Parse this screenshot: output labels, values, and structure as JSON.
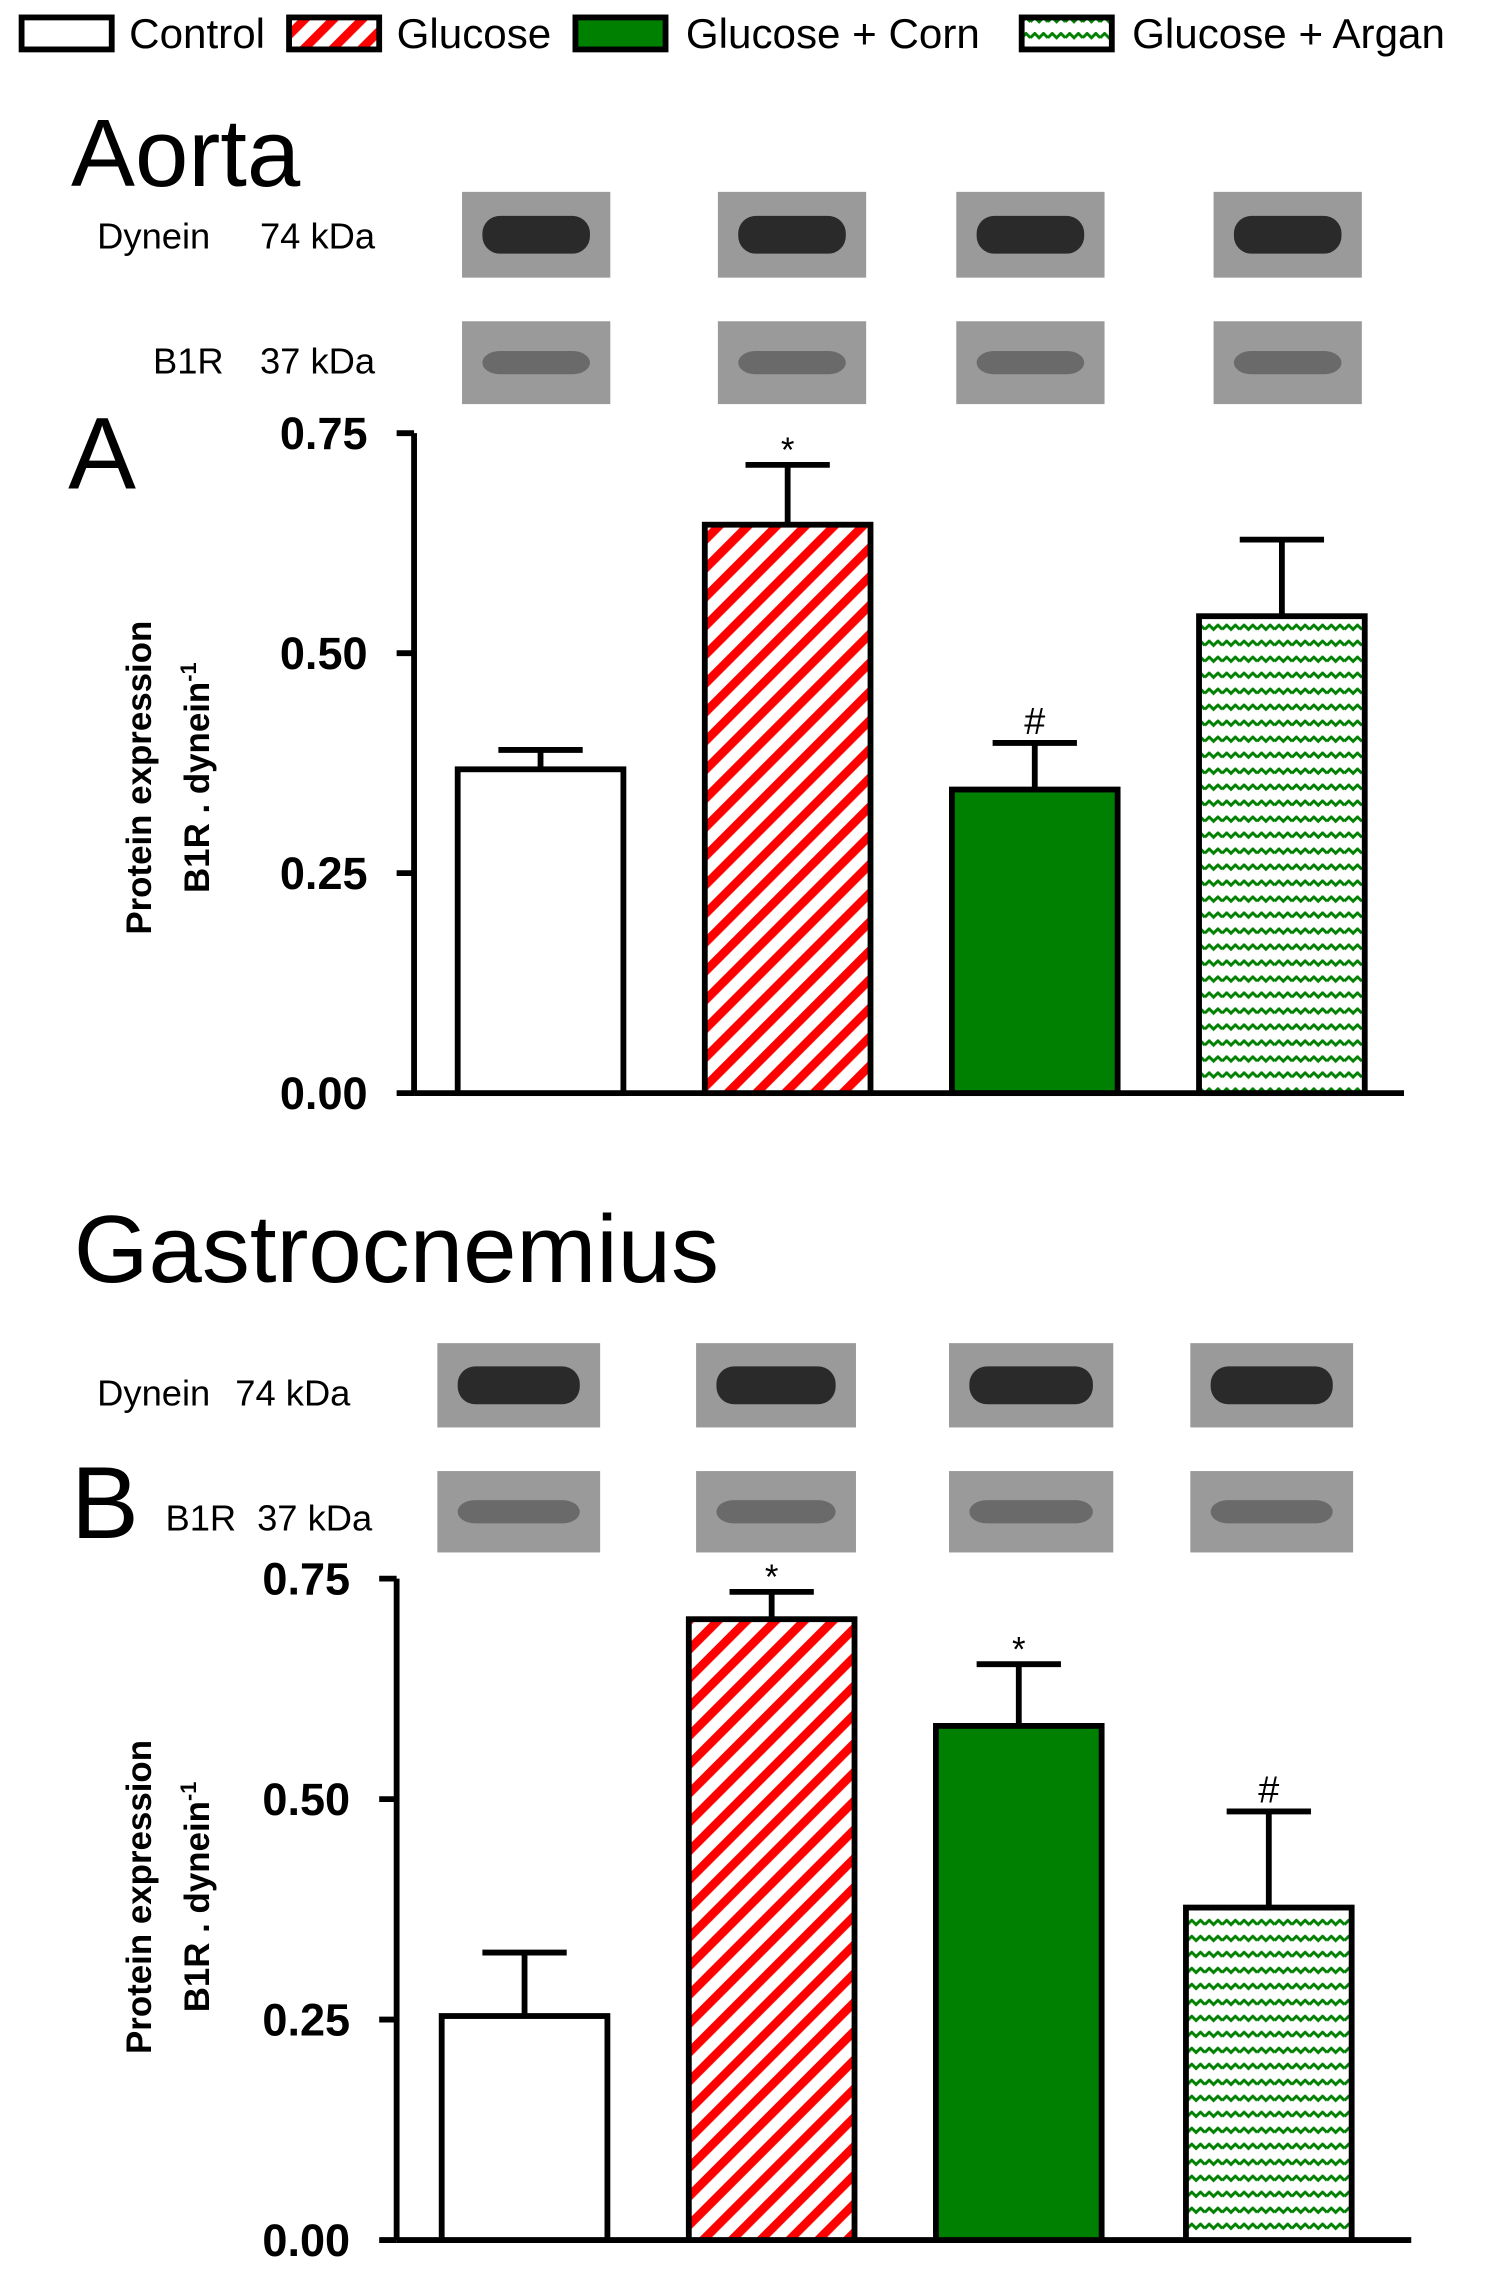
{
  "legend": [
    {
      "name": "Control",
      "color": "#ffffff",
      "pattern": "solid"
    },
    {
      "name": "Glucose",
      "color": "#ff0000",
      "pattern": "diagonal"
    },
    {
      "name": "Glucose + Corn",
      "color": "#008000",
      "pattern": "solid"
    },
    {
      "name": "Glucose + Argan",
      "color": "#008000",
      "pattern": "zigzag"
    }
  ],
  "chart_data": [
    {
      "type": "bar",
      "title": "Aorta",
      "panel_label": "A",
      "blots": [
        {
          "protein": "Dynein",
          "size": "74 kDa"
        },
        {
          "protein": "B1R",
          "size": "37 kDa"
        }
      ],
      "ylabel": "Protein expression",
      "ylabel2": "B1R . dynein",
      "ylabel2_superscript": "-1",
      "values": [
        0.368,
        0.646,
        0.345,
        0.542
      ],
      "errors": [
        0.022,
        0.068,
        0.053,
        0.087
      ],
      "annotations": [
        null,
        "*",
        "#",
        null
      ],
      "ylim": [
        0,
        0.75
      ],
      "yticks": [
        {
          "value": 0,
          "label": "0.00"
        },
        {
          "value": 0.25,
          "label": "0.25"
        },
        {
          "value": 0.5,
          "label": "0.50"
        },
        {
          "value": 0.75,
          "label": "0.75"
        }
      ]
    },
    {
      "type": "bar",
      "title": "Gastrocnemius",
      "panel_label": "B",
      "blots": [
        {
          "protein": "Dynein",
          "size": "74 kDa"
        },
        {
          "protein": "B1R",
          "size": "37 kDa"
        }
      ],
      "ylabel": "Protein expression",
      "ylabel2": "B1R . dynein",
      "ylabel2_superscript": "-1",
      "values": [
        0.254,
        0.704,
        0.583,
        0.377
      ],
      "errors": [
        0.072,
        0.031,
        0.07,
        0.109
      ],
      "annotations": [
        null,
        "*",
        "*",
        "#"
      ],
      "ylim": [
        0,
        0.75
      ],
      "yticks": [
        {
          "value": 0,
          "label": "0.00"
        },
        {
          "value": 0.25,
          "label": "0.25"
        },
        {
          "value": 0.5,
          "label": "0.50"
        },
        {
          "value": 0.75,
          "label": "0.75"
        }
      ]
    }
  ]
}
